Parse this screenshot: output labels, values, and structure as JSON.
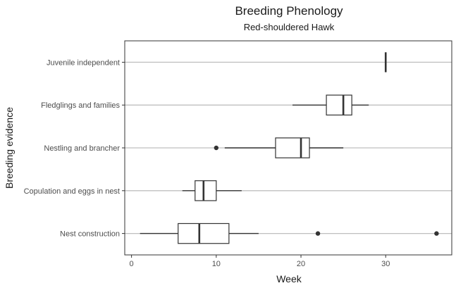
{
  "chart_data": {
    "type": "boxplot",
    "orientation": "horizontal",
    "title": "Breeding Phenology",
    "subtitle": "Red-shouldered Hawk",
    "xlabel": "Week",
    "ylabel": "Breeding evidence",
    "xlim": [
      -0.8,
      37.8
    ],
    "x_ticks": [
      0,
      10,
      20,
      30
    ],
    "grid": "horizontal-major",
    "categories": [
      "Nest construction",
      "Copulation and eggs in nest",
      "Nestling and brancher",
      "Fledglings and families",
      "Juvenile independent"
    ],
    "boxes": [
      {
        "category": "Nest construction",
        "whisker_low": 1,
        "q1": 5.5,
        "median": 8,
        "q3": 11.5,
        "whisker_high": 15,
        "outliers": [
          22,
          36
        ]
      },
      {
        "category": "Copulation and eggs in nest",
        "whisker_low": 6,
        "q1": 7.5,
        "median": 8.5,
        "q3": 10,
        "whisker_high": 13,
        "outliers": []
      },
      {
        "category": "Nestling and brancher",
        "whisker_low": 11,
        "q1": 17,
        "median": 20,
        "q3": 21,
        "whisker_high": 25,
        "outliers": [
          10
        ]
      },
      {
        "category": "Fledglings and families",
        "whisker_low": 19,
        "q1": 23,
        "median": 25,
        "q3": 26,
        "whisker_high": 28,
        "outliers": []
      },
      {
        "category": "Juvenile independent",
        "whisker_low": 30,
        "q1": 30,
        "median": 30,
        "q3": 30,
        "whisker_high": 30,
        "outliers": []
      }
    ],
    "colors": {
      "box_stroke": "#333333",
      "grid": "#bfbfbf",
      "panel_border": "#333333",
      "point": "#333333"
    }
  }
}
